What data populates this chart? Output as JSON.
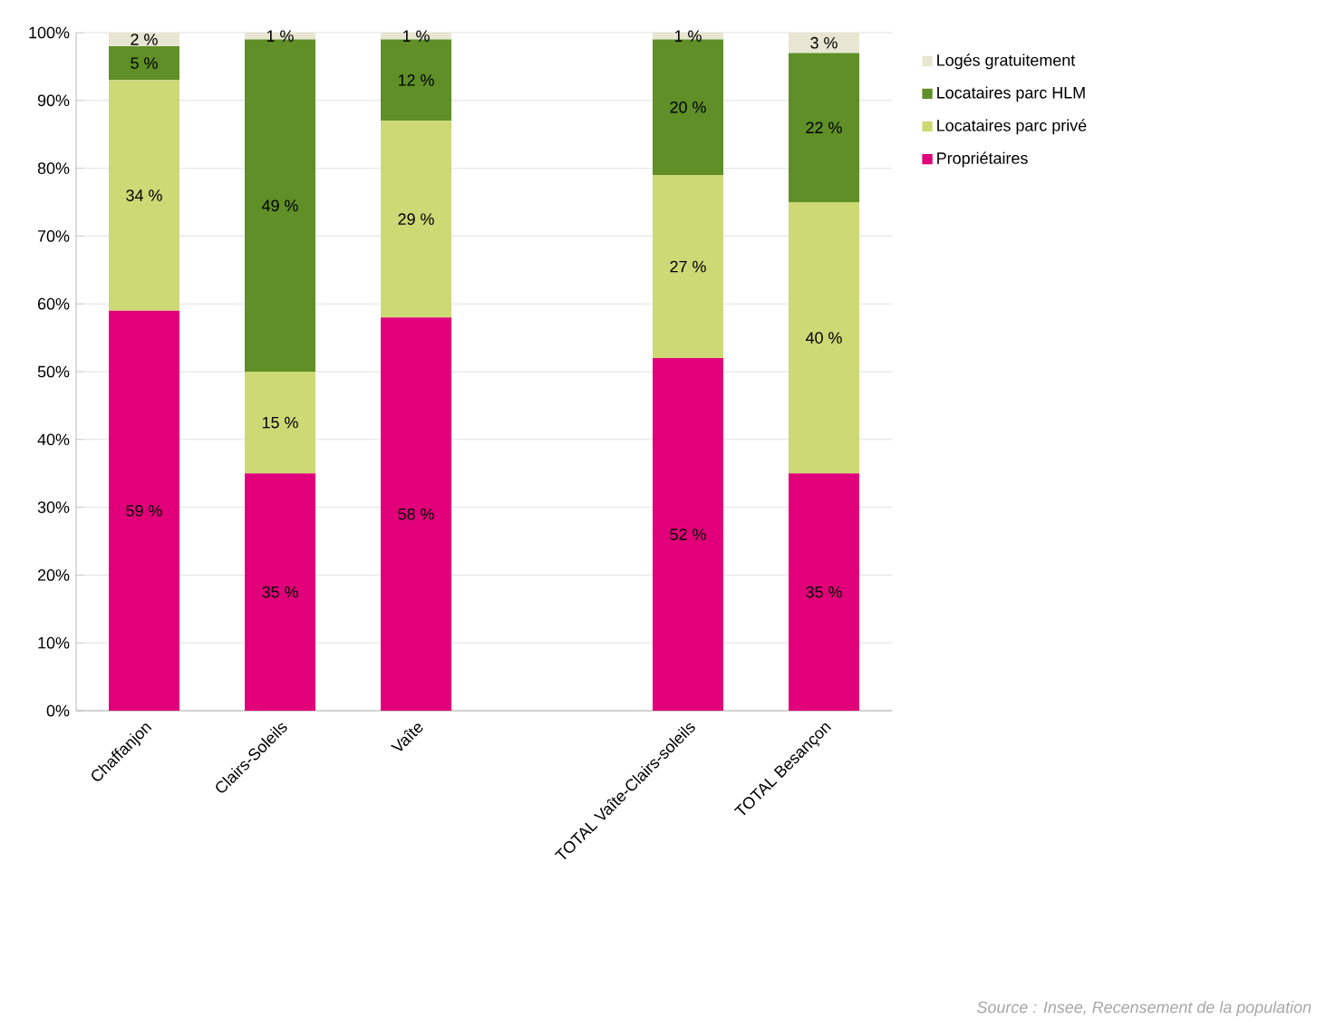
{
  "chart_data": {
    "type": "bar",
    "stacked": true,
    "categories": [
      "Chaffanjon",
      "Clairs-Soleils",
      "Vaîte",
      null,
      "TOTAL Vaîte-Clairs-soleils",
      "TOTAL Besançon"
    ],
    "series": [
      {
        "name": "Propriétaires",
        "color": "#e2007a",
        "values": [
          59,
          35,
          58,
          null,
          52,
          35
        ],
        "value_labels": [
          "59 %",
          "35 %",
          "58 %",
          null,
          "52 %",
          "35 %"
        ]
      },
      {
        "name": "Locataires parc privé",
        "color": "#cdd975",
        "values": [
          34,
          15,
          29,
          null,
          27,
          40
        ],
        "value_labels": [
          "34 %",
          "15 %",
          "29 %",
          null,
          "27 %",
          "40 %"
        ]
      },
      {
        "name": "Locataires parc HLM",
        "color": "#5f8f26",
        "values": [
          5,
          49,
          12,
          null,
          20,
          22
        ],
        "value_labels": [
          "5 %",
          "49 %",
          "12 %",
          null,
          "20 %",
          "22 %"
        ]
      },
      {
        "name": "Logés gratuitement",
        "color": "#e8e6d2",
        "values": [
          2,
          1,
          1,
          null,
          1,
          3
        ],
        "value_labels": [
          "2 %",
          "1 %",
          "1 %",
          null,
          "1 %",
          "3 %"
        ]
      }
    ],
    "ylim": [
      0,
      100
    ],
    "yticks": [
      {
        "value": 0,
        "label": "0%"
      },
      {
        "value": 10,
        "label": "10%"
      },
      {
        "value": 20,
        "label": "20%"
      },
      {
        "value": 30,
        "label": "30%"
      },
      {
        "value": 40,
        "label": "40%"
      },
      {
        "value": 50,
        "label": "50%"
      },
      {
        "value": 60,
        "label": "60%"
      },
      {
        "value": 70,
        "label": "70%"
      },
      {
        "value": 80,
        "label": "80%"
      },
      {
        "value": 90,
        "label": "90%"
      },
      {
        "value": 100,
        "label": "100%"
      }
    ],
    "grid": "y",
    "legend": "right",
    "annotations": [
      "Source : Insee, Recensement de la population"
    ]
  }
}
